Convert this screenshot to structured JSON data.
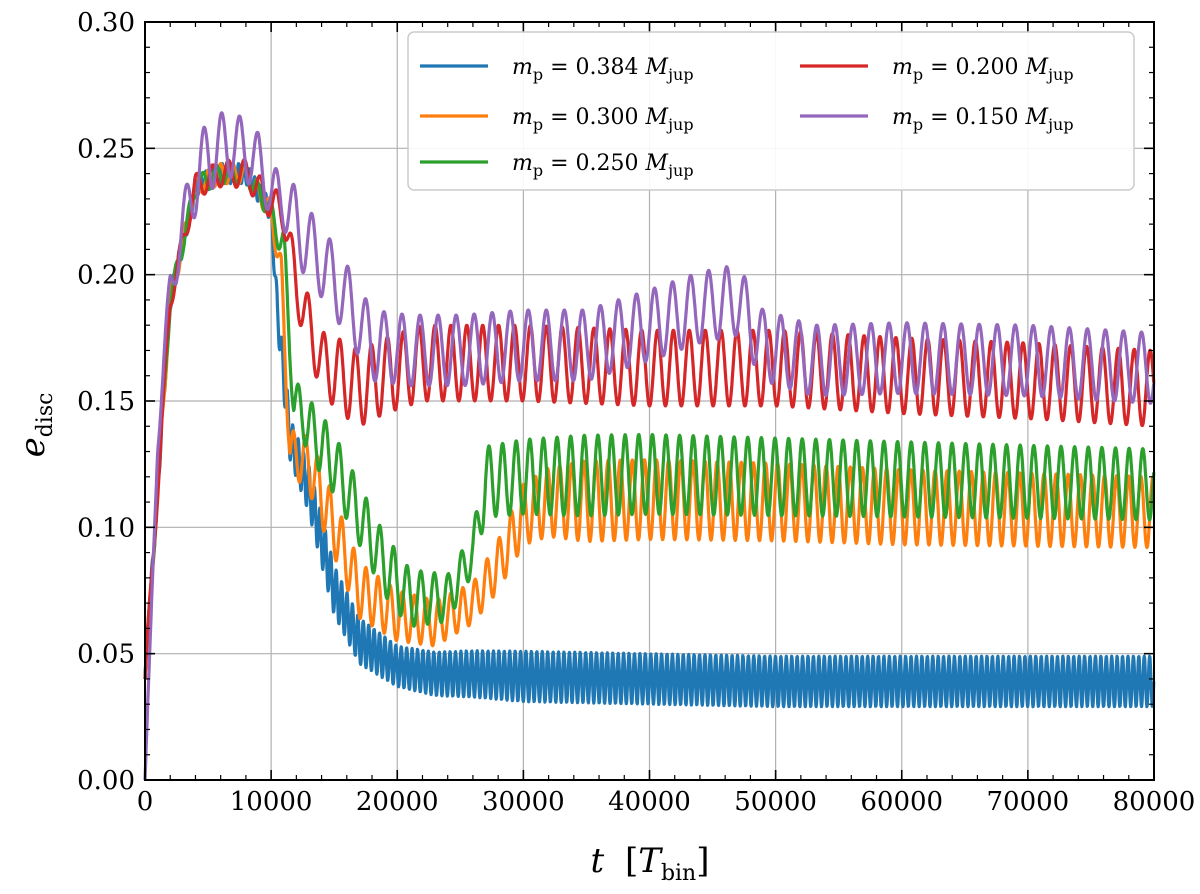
{
  "chart_data": {
    "type": "line",
    "title": "",
    "xlabel": "t [T_bin]",
    "xlabel_parts": {
      "italic": "t",
      "bracket_open": "[",
      "symbol": "T",
      "sub": "bin",
      "bracket_close": "]"
    },
    "ylabel": "e_disc",
    "ylabel_parts": {
      "symbol": "e",
      "sub": "disc"
    },
    "xlim": [
      0,
      80000
    ],
    "ylim": [
      0,
      0.3
    ],
    "xticks": [
      0,
      10000,
      20000,
      30000,
      40000,
      50000,
      60000,
      70000,
      80000
    ],
    "xtick_labels": [
      "0",
      "10000",
      "20000",
      "30000",
      "40000",
      "50000",
      "60000",
      "70000",
      "80000"
    ],
    "yticks": [
      0,
      0.05,
      0.1,
      0.15,
      0.2,
      0.25,
      0.3
    ],
    "ytick_labels": [
      "0.00",
      "0.05",
      "0.10",
      "0.15",
      "0.20",
      "0.25",
      "0.30"
    ],
    "grid": true,
    "legend_position": "top-right",
    "legend_columns": 2,
    "series": [
      {
        "name": "m_p = 0.384 M_jup",
        "label_prefix": "m",
        "label_sub": "p",
        "label_value": " = 0.384 ",
        "label_mass": "M",
        "label_mass_sub": "jup",
        "color": "#1f77b4",
        "period": 430,
        "points": [
          [
            0,
            0.04
          ],
          [
            2000,
            0.19
          ],
          [
            4000,
            0.235
          ],
          [
            6000,
            0.24
          ],
          [
            8000,
            0.24
          ],
          [
            10000,
            0.225
          ],
          [
            10500,
            0.185
          ],
          [
            11500,
            0.135
          ],
          [
            13000,
            0.115
          ],
          [
            15000,
            0.075
          ],
          [
            17000,
            0.055
          ],
          [
            20000,
            0.045
          ],
          [
            23000,
            0.042
          ],
          [
            26000,
            0.042
          ],
          [
            30000,
            0.041
          ],
          [
            40000,
            0.04
          ],
          [
            50000,
            0.039
          ],
          [
            60000,
            0.039
          ],
          [
            70000,
            0.039
          ],
          [
            80000,
            0.039
          ]
        ],
        "amp": [
          [
            0,
            0.004
          ],
          [
            10000,
            0.004
          ],
          [
            11000,
            0.008
          ],
          [
            14000,
            0.01
          ],
          [
            20000,
            0.008
          ],
          [
            30000,
            0.01
          ],
          [
            80000,
            0.01
          ]
        ]
      },
      {
        "name": "m_p = 0.300 M_jup",
        "label_prefix": "m",
        "label_sub": "p",
        "label_value": " = 0.300 ",
        "label_mass": "M",
        "label_mass_sub": "jup",
        "color": "#ff7f0e",
        "period": 960,
        "points": [
          [
            0,
            0.04
          ],
          [
            2000,
            0.19
          ],
          [
            4000,
            0.235
          ],
          [
            6000,
            0.24
          ],
          [
            8000,
            0.24
          ],
          [
            10000,
            0.225
          ],
          [
            10800,
            0.2
          ],
          [
            11500,
            0.13
          ],
          [
            13000,
            0.125
          ],
          [
            15000,
            0.1
          ],
          [
            17000,
            0.075
          ],
          [
            20000,
            0.065
          ],
          [
            23000,
            0.062
          ],
          [
            26000,
            0.07
          ],
          [
            28000,
            0.085
          ],
          [
            30000,
            0.105
          ],
          [
            32000,
            0.11
          ],
          [
            40000,
            0.111
          ],
          [
            50000,
            0.11
          ],
          [
            60000,
            0.108
          ],
          [
            70000,
            0.107
          ],
          [
            80000,
            0.106
          ]
        ],
        "amp": [
          [
            0,
            0.004
          ],
          [
            10000,
            0.004
          ],
          [
            11000,
            0.008
          ],
          [
            14000,
            0.012
          ],
          [
            20000,
            0.01
          ],
          [
            26000,
            0.008
          ],
          [
            30000,
            0.012
          ],
          [
            35000,
            0.016
          ],
          [
            80000,
            0.014
          ]
        ]
      },
      {
        "name": "m_p = 0.250 M_jup",
        "label_prefix": "m",
        "label_sub": "p",
        "label_value": " = 0.250 ",
        "label_mass": "M",
        "label_mass_sub": "jup",
        "color": "#2ca02c",
        "period": 1080,
        "points": [
          [
            0,
            0.04
          ],
          [
            2000,
            0.19
          ],
          [
            4000,
            0.235
          ],
          [
            6000,
            0.24
          ],
          [
            8000,
            0.24
          ],
          [
            10000,
            0.225
          ],
          [
            11000,
            0.21
          ],
          [
            11800,
            0.15
          ],
          [
            13000,
            0.14
          ],
          [
            15000,
            0.125
          ],
          [
            17000,
            0.105
          ],
          [
            19000,
            0.085
          ],
          [
            21000,
            0.072
          ],
          [
            24000,
            0.072
          ],
          [
            26000,
            0.09
          ],
          [
            27000,
            0.118
          ],
          [
            30000,
            0.12
          ],
          [
            40000,
            0.121
          ],
          [
            50000,
            0.12
          ],
          [
            60000,
            0.119
          ],
          [
            70000,
            0.118
          ],
          [
            80000,
            0.117
          ]
        ],
        "amp": [
          [
            0,
            0.004
          ],
          [
            10000,
            0.004
          ],
          [
            11000,
            0.008
          ],
          [
            14000,
            0.012
          ],
          [
            20000,
            0.012
          ],
          [
            26000,
            0.008
          ],
          [
            27000,
            0.014
          ],
          [
            35000,
            0.016
          ],
          [
            80000,
            0.014
          ]
        ]
      },
      {
        "name": "m_p = 0.200 M_jup",
        "label_prefix": "m",
        "label_sub": "p",
        "label_value": " = 0.200 ",
        "label_mass": "M",
        "label_mass_sub": "jup",
        "color": "#d62728",
        "period": 1260,
        "points": [
          [
            0,
            0.04
          ],
          [
            2000,
            0.19
          ],
          [
            4000,
            0.235
          ],
          [
            6000,
            0.24
          ],
          [
            8000,
            0.24
          ],
          [
            10000,
            0.228
          ],
          [
            11000,
            0.225
          ],
          [
            12000,
            0.195
          ],
          [
            14000,
            0.165
          ],
          [
            17000,
            0.155
          ],
          [
            19000,
            0.16
          ],
          [
            22000,
            0.165
          ],
          [
            30000,
            0.165
          ],
          [
            40000,
            0.163
          ],
          [
            50000,
            0.163
          ],
          [
            60000,
            0.16
          ],
          [
            70000,
            0.158
          ],
          [
            80000,
            0.155
          ]
        ],
        "amp": [
          [
            0,
            0.004
          ],
          [
            10000,
            0.006
          ],
          [
            12000,
            0.01
          ],
          [
            16000,
            0.015
          ],
          [
            20000,
            0.015
          ],
          [
            80000,
            0.015
          ]
        ]
      },
      {
        "name": "m_p = 0.150 M_jup",
        "label_prefix": "m",
        "label_sub": "p",
        "label_value": " = 0.150 ",
        "label_mass": "M",
        "label_mass_sub": "jup",
        "color": "#9467bd",
        "period": 1430,
        "points": [
          [
            0,
            0.0
          ],
          [
            400,
            0.05
          ],
          [
            1000,
            0.135
          ],
          [
            2000,
            0.195
          ],
          [
            3500,
            0.23
          ],
          [
            5000,
            0.248
          ],
          [
            7000,
            0.252
          ],
          [
            9000,
            0.245
          ],
          [
            10000,
            0.232
          ],
          [
            11000,
            0.23
          ],
          [
            12500,
            0.215
          ],
          [
            14000,
            0.205
          ],
          [
            16000,
            0.19
          ],
          [
            18000,
            0.172
          ],
          [
            21000,
            0.17
          ],
          [
            25000,
            0.17
          ],
          [
            30000,
            0.172
          ],
          [
            35000,
            0.172
          ],
          [
            40000,
            0.18
          ],
          [
            44000,
            0.187
          ],
          [
            47000,
            0.19
          ],
          [
            49000,
            0.172
          ],
          [
            53000,
            0.166
          ],
          [
            60000,
            0.167
          ],
          [
            70000,
            0.166
          ],
          [
            80000,
            0.163
          ]
        ],
        "amp": [
          [
            0,
            0.003
          ],
          [
            2000,
            0.008
          ],
          [
            5000,
            0.015
          ],
          [
            10000,
            0.01
          ],
          [
            12000,
            0.014
          ],
          [
            20000,
            0.014
          ],
          [
            80000,
            0.014
          ]
        ]
      }
    ]
  }
}
